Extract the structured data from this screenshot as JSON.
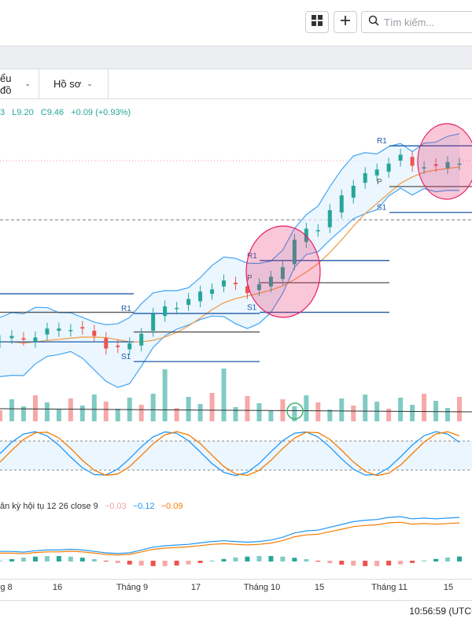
{
  "toolbar": {
    "grid_icon": "grid-layout-icon",
    "add_icon": "plus-icon",
    "search_placeholder": "Tìm kiếm..."
  },
  "menus": [
    {
      "label": "ểu đồ"
    },
    {
      "label": "Hồ sơ"
    }
  ],
  "ohlc": {
    "open_fragment": "3",
    "low": "L9.20",
    "close": "C9.46",
    "change": "+0.09 (+0.93%)"
  },
  "pivots": [
    {
      "label": "R1"
    },
    {
      "label": "P"
    },
    {
      "label": "S1"
    }
  ],
  "macd": {
    "title": "ân kỳ hội tụ 12 26 close 9",
    "histogram": "−0.03",
    "macd": "−0.12",
    "signal": "−0.09"
  },
  "xaxis": {
    "labels": [
      "g 8",
      "16",
      "Tháng 9",
      "17",
      "Tháng 10",
      "15",
      "Tháng 11",
      "15"
    ]
  },
  "status": {
    "clock": "10:56:59 (UTC+"
  },
  "colors": {
    "up": "#26a69a",
    "down": "#ef5350",
    "band": "#42a5f5",
    "ma": "#f0a050",
    "highlight": "#e91e63"
  },
  "chart_data": {
    "type": "candlestick",
    "price_path": [
      7.6,
      7.6,
      7.55,
      7.65,
      7.7,
      7.7,
      7.75,
      7.7,
      7.6,
      7.5,
      7.45,
      7.5,
      7.7,
      7.9,
      8.0,
      8.05,
      8.1,
      8.2,
      8.3,
      8.35,
      8.3,
      8.25,
      8.3,
      8.4,
      8.6,
      8.9,
      9.05,
      9.1,
      9.3,
      9.5,
      9.7,
      9.8,
      9.85,
      10.0,
      10.05,
      9.9,
      9.95,
      9.9,
      9.95,
      10.0
    ],
    "pivot_levels": [
      {
        "label": "R1",
        "level": 8.2
      },
      {
        "label": "S1",
        "level": 7.55
      },
      {
        "label": "R1",
        "level": 8.65
      },
      {
        "label": "P",
        "level": 8.45
      },
      {
        "label": "S1",
        "level": 8.1
      },
      {
        "label": "R1",
        "level": 10.15
      },
      {
        "label": "P",
        "level": 9.85
      },
      {
        "label": "S1",
        "level": 9.3
      }
    ]
  }
}
